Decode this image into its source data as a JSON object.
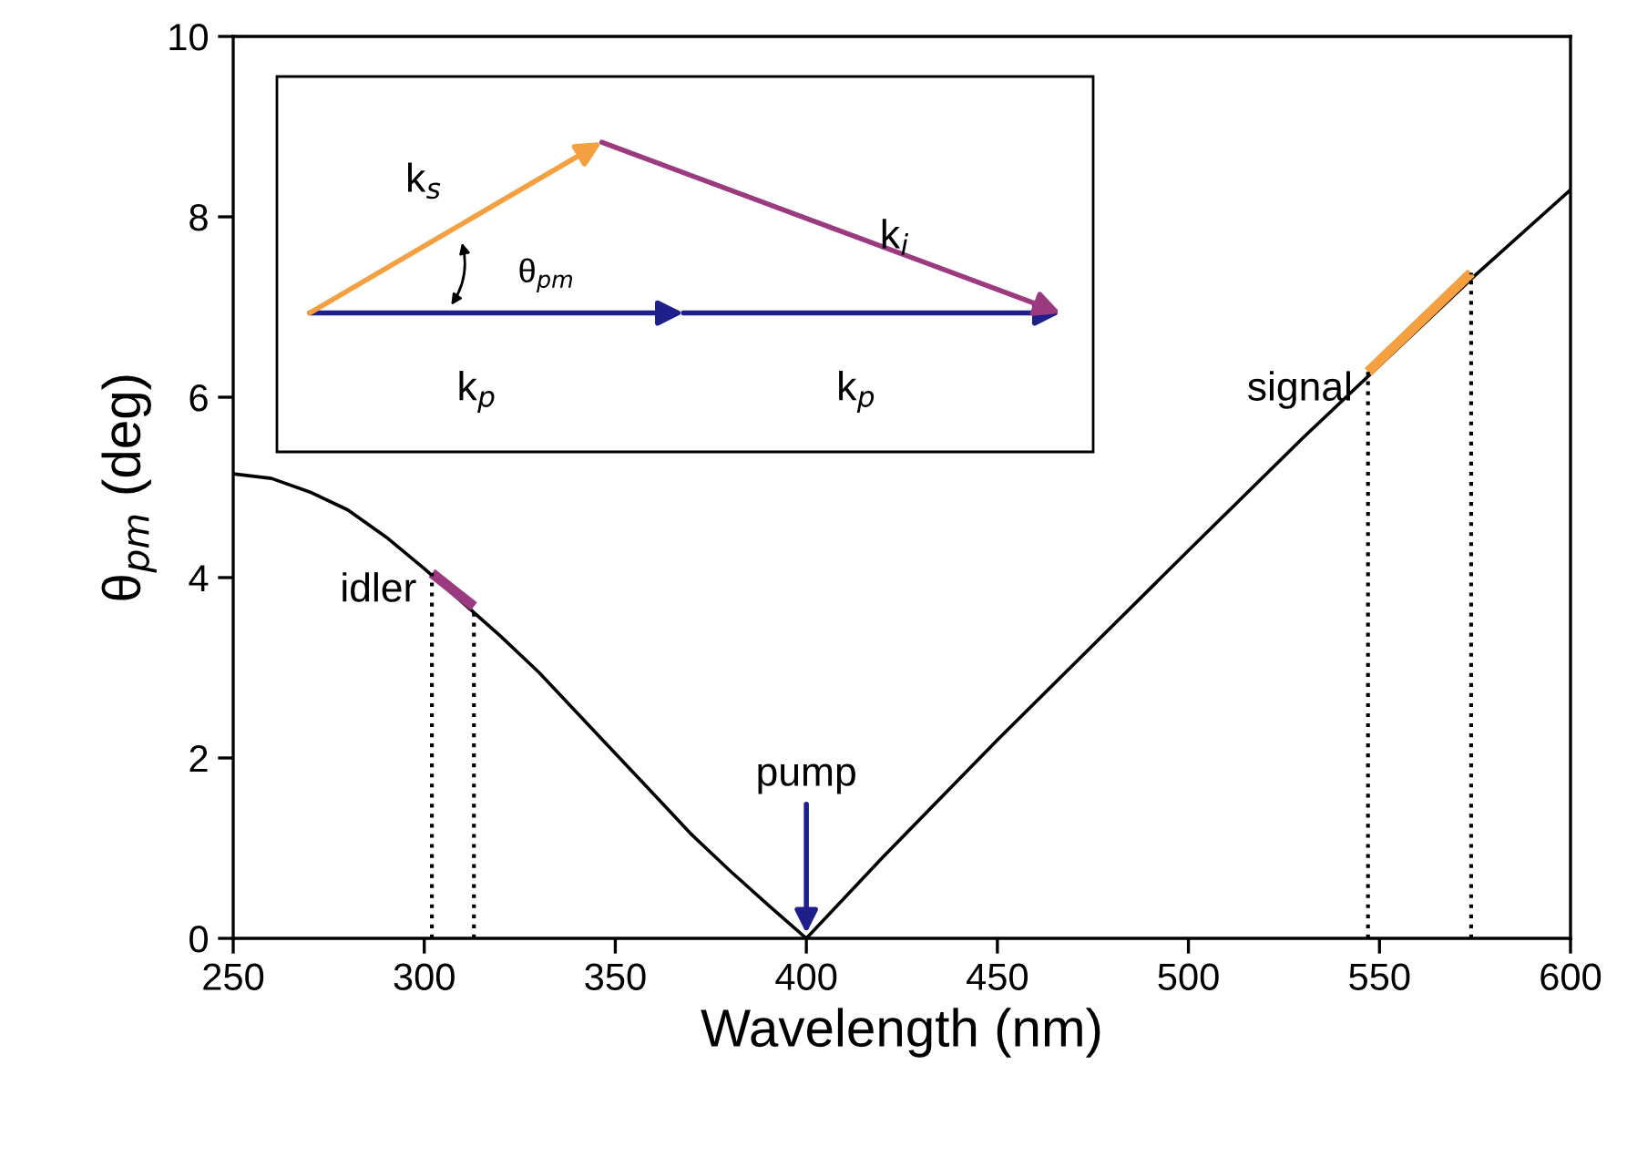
{
  "chart_data": {
    "type": "line",
    "xlabel": "Wavelength (nm)",
    "ylabel": "θ$_{pm}$ (deg)",
    "xlim": [
      250,
      600
    ],
    "ylim": [
      0,
      10
    ],
    "xticks": [
      250,
      300,
      350,
      400,
      450,
      500,
      550,
      600
    ],
    "yticks": [
      0,
      2,
      4,
      6,
      8,
      10
    ],
    "grid": false,
    "legend": false,
    "series": [
      {
        "color": "#000000",
        "x": [
          250,
          260,
          270,
          280,
          290,
          300,
          320,
          330,
          340,
          350,
          360,
          370,
          380,
          390,
          400,
          420,
          450,
          500,
          530,
          575,
          600
        ],
        "values": [
          5.15,
          5.1,
          4.95,
          4.75,
          4.45,
          4.1,
          3.35,
          2.95,
          2.5,
          2.05,
          1.6,
          1.15,
          0.75,
          0.37,
          0,
          0.9,
          2.2,
          4.3,
          5.55,
          7.35,
          8.3
        ]
      },
      {
        "color": "#9b3a7e",
        "x": [
          302,
          313
        ],
        "values": [
          4.05,
          3.68
        ]
      },
      {
        "color": "#f5a040",
        "x": [
          547,
          574
        ],
        "values": [
          6.28,
          7.38
        ]
      },
      {
        "color": "#000000",
        "line_style": "dotted",
        "x": [
          302,
          302
        ],
        "values": [
          0,
          4.05
        ]
      },
      {
        "color": "#000000",
        "line_style": "dotted",
        "x": [
          313,
          313
        ],
        "values": [
          0,
          3.68
        ]
      },
      {
        "color": "#000000",
        "line_style": "dotted",
        "x": [
          547,
          547
        ],
        "values": [
          0,
          6.28
        ]
      },
      {
        "color": "#000000",
        "line_style": "dotted",
        "x": [
          574,
          574
        ],
        "values": [
          0,
          7.38
        ]
      }
    ],
    "annotations": [
      {
        "text": "pump",
        "x": 400,
        "y": 0
      },
      {
        "text": "idler",
        "x": 302,
        "y": 4.05
      },
      {
        "text": "signal",
        "x": 547,
        "y": 6.28
      },
      "k$_{s}$",
      "k$_{i}$",
      "θ$_{pm}$",
      "k$_{p}$",
      "k$_{p}$"
    ]
  }
}
